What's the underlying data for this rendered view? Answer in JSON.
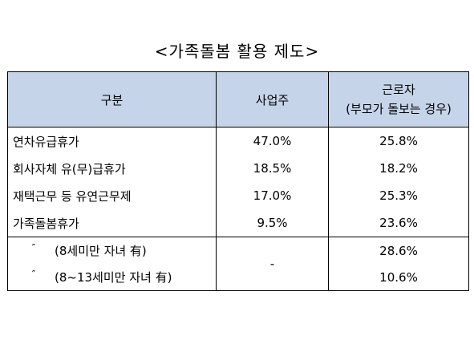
{
  "title": "<가족돌봄 활용 제도>",
  "table": {
    "headers": {
      "category": "구분",
      "employer": "사업주",
      "worker_line1": "근로자",
      "worker_line2": "(부모가 돌보는 경우)"
    },
    "rows": [
      {
        "category": "연차유급휴가",
        "employer": "47.0%",
        "worker": "25.8%"
      },
      {
        "category": "회사자체 유(무)급휴가",
        "employer": "18.5%",
        "worker": "18.2%"
      },
      {
        "category": "재택근무 등 유연근무제",
        "employer": "17.0%",
        "worker": "25.3%"
      },
      {
        "category": "가족돌봄휴가",
        "employer": "9.5%",
        "worker": "23.6%"
      }
    ],
    "sub_rows": [
      {
        "ditto": "″",
        "label": "(8세미만 자녀 有)",
        "worker": "28.6%"
      },
      {
        "ditto": "″",
        "label": "(8~13세미만 자녀 有)",
        "worker": "10.6%"
      }
    ],
    "sub_employer": "-"
  }
}
